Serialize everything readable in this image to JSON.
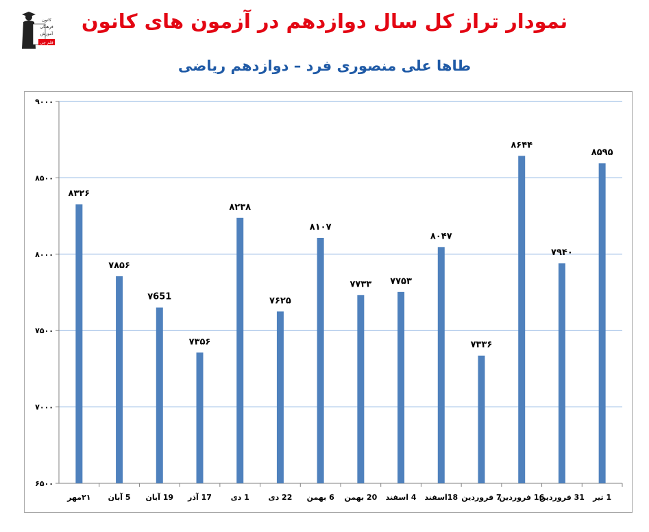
{
  "header": {
    "title": "نمودار تراز کل سال دوازدهم در آزمون های کانون",
    "subtitle": "طاها علی منصوری فرد – دوازدهم ریاضی"
  },
  "logo": {
    "icon": "graduate-icon",
    "lines": [
      "کانون",
      "فرهنگی",
      "آموزش",
      "قلم چی"
    ],
    "color": "#222222",
    "badge_color": "#e30613"
  },
  "chart_data": {
    "type": "bar",
    "categories": [
      "۲۱مهر",
      "5 آبان",
      "19 آبان",
      "17 آذر",
      "1 دی",
      "22 دی",
      "6 بهمن",
      "20 بهمن",
      "4 اسفند",
      "18اسفند",
      "7 فروردین",
      "16 فروردین",
      "31 فروردین",
      "1 تیر"
    ],
    "values": [
      8326,
      7856,
      7651,
      7356,
      8238,
      7625,
      8107,
      7733,
      7753,
      8047,
      7336,
      8644,
      7940,
      8595
    ],
    "value_labels": [
      "۸۳۲۶",
      "۷۸۵۶",
      "۷651",
      "۷۳۵۶",
      "۸۲۳۸",
      "۷۶۲۵",
      "۸۱۰۷",
      "۷۷۳۳",
      "۷۷۵۳",
      "۸۰۴۷",
      "۷۳۳۶",
      "۸۶۴۴",
      "۷۹۴۰",
      "۸۵۹۵"
    ],
    "ylim": [
      6500,
      9000
    ],
    "yticks": [
      6500,
      7000,
      7500,
      8000,
      8500,
      9000
    ],
    "ytick_labels": [
      "۶۵۰۰",
      "۷۰۰۰",
      "۷۵۰۰",
      "۸۰۰۰",
      "۸۵۰۰",
      "۹۰۰۰"
    ],
    "grid": true,
    "bar_color": "#4f81bd",
    "grid_color": "#8db4e2",
    "axis_color": "#808080",
    "legend": "none"
  }
}
